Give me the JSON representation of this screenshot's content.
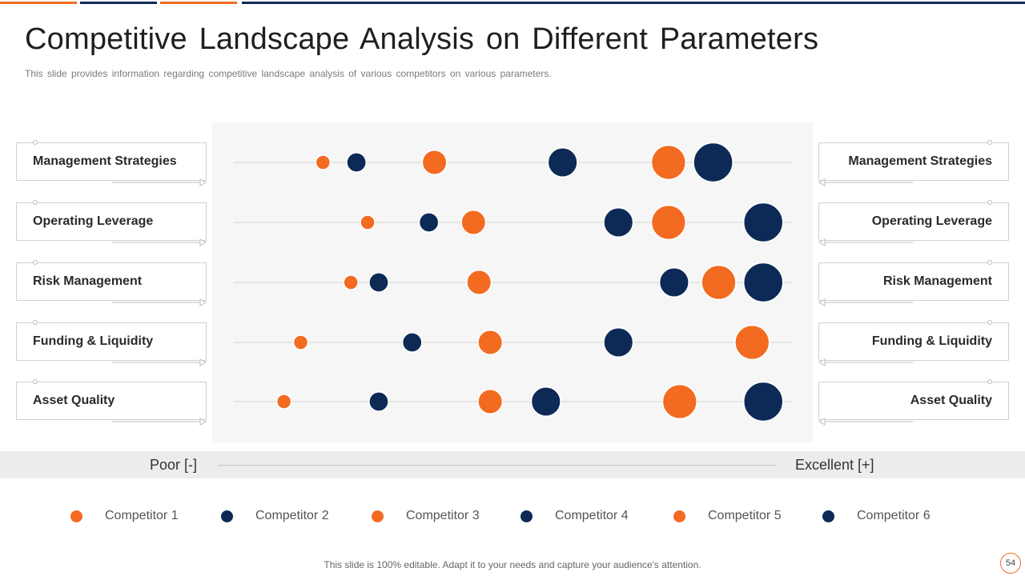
{
  "title": "Competitive Landscape Analysis on Different Parameters",
  "subtitle": "This slide provides information regarding competitive landscape analysis of various competitors on various parameters.",
  "colors": {
    "orange": "#f26b21",
    "navy": "#0d2a56"
  },
  "chart_data": {
    "type": "scatter",
    "x_axis": {
      "min_label": "Poor [-]",
      "max_label": "Excellent [+]",
      "range": [
        0,
        100
      ]
    },
    "parameters": [
      "Management Strategies",
      "Operating Leverage",
      "Risk Management",
      "Funding & Liquidity",
      "Asset Quality"
    ],
    "series": [
      {
        "name": "Competitor 1",
        "color": "#f26b21",
        "scores": [
          16,
          24,
          21,
          12,
          9
        ]
      },
      {
        "name": "Competitor 2",
        "color": "#0d2a56",
        "scores": [
          22,
          35,
          26,
          32,
          26
        ]
      },
      {
        "name": "Competitor 3",
        "color": "#f26b21",
        "scores": [
          36,
          43,
          44,
          46,
          46
        ]
      },
      {
        "name": "Competitor 4",
        "color": "#0d2a56",
        "scores": [
          59,
          69,
          79,
          69,
          56
        ]
      },
      {
        "name": "Competitor 5",
        "color": "#f26b21",
        "scores": [
          78,
          78,
          87,
          93,
          80
        ]
      },
      {
        "name": "Competitor 6",
        "color": "#0d2a56",
        "scores": [
          86,
          95,
          95,
          null,
          95
        ]
      }
    ]
  },
  "footer": "This slide is 100% editable. Adapt it to your needs and capture your audience's attention.",
  "page_number": "54"
}
